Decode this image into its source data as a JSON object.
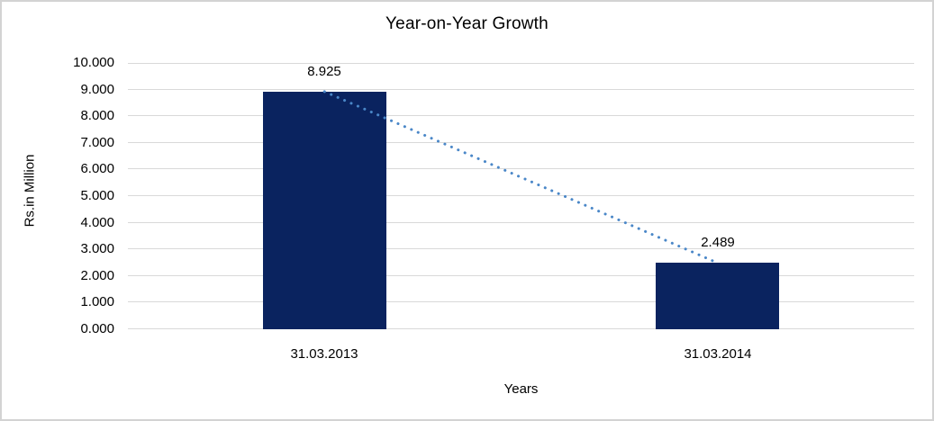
{
  "chart_data": {
    "type": "bar",
    "title": "Year-on-Year Growth",
    "xlabel": "Years",
    "ylabel": "Rs.in Million",
    "categories": [
      "31.03.2013",
      "31.03.2014"
    ],
    "values": [
      8.925,
      2.489
    ],
    "data_labels": [
      "8.925",
      "2.489"
    ],
    "ylim": [
      0,
      10
    ],
    "y_tick_step": 1,
    "y_tick_labels": [
      "0.000",
      "1.000",
      "2.000",
      "3.000",
      "4.000",
      "5.000",
      "6.000",
      "7.000",
      "8.000",
      "9.000",
      "10.000"
    ],
    "grid": true,
    "legend": "none",
    "trendline": {
      "type": "linear",
      "style": "dotted",
      "connects": "bar tops"
    },
    "colors": {
      "bar": "#0a235f",
      "trendline": "#4a87c8",
      "gridline": "#d9d9d9",
      "chart_border": "#d3d3d3",
      "text": "#000000",
      "background": "#ffffff"
    }
  }
}
